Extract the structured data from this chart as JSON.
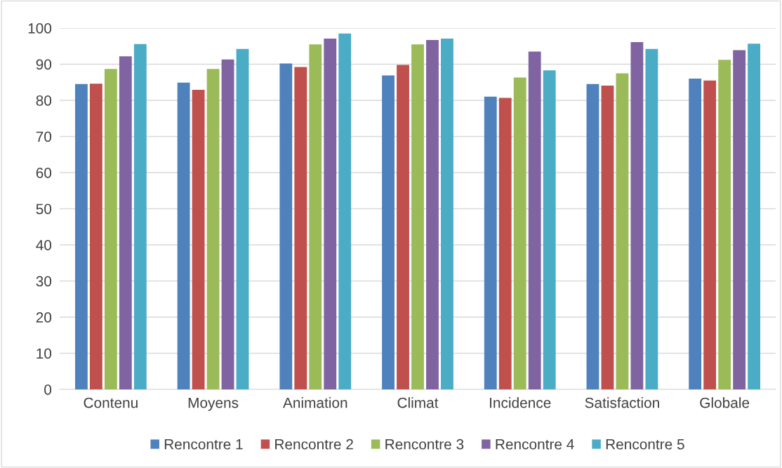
{
  "chart_data": {
    "type": "bar",
    "categories": [
      "Contenu",
      "Moyens",
      "Animation",
      "Climat",
      "Incidence",
      "Satisfaction",
      "Globale"
    ],
    "series": [
      {
        "name": "Rencontre 1",
        "color": "#4f81bd",
        "values": [
          84.5,
          84.9,
          90.2,
          86.9,
          81.0,
          84.5,
          86.0
        ]
      },
      {
        "name": "Rencontre 2",
        "color": "#c0504d",
        "values": [
          84.6,
          82.9,
          89.2,
          89.8,
          80.7,
          84.1,
          85.5
        ]
      },
      {
        "name": "Rencontre 3",
        "color": "#9bbb59",
        "values": [
          88.7,
          88.7,
          95.5,
          95.5,
          86.3,
          87.5,
          91.2
        ]
      },
      {
        "name": "Rencontre 4",
        "color": "#8064a2",
        "values": [
          92.2,
          91.3,
          97.1,
          96.7,
          93.5,
          96.1,
          93.9
        ]
      },
      {
        "name": "Rencontre 5",
        "color": "#4bacc6",
        "values": [
          95.6,
          94.2,
          98.5,
          97.1,
          88.3,
          94.2,
          95.7
        ]
      }
    ],
    "ylim": [
      0,
      100
    ],
    "yticks": [
      0,
      10,
      20,
      30,
      40,
      50,
      60,
      70,
      80,
      90,
      100
    ],
    "grid": "y",
    "legend": "bottom"
  }
}
